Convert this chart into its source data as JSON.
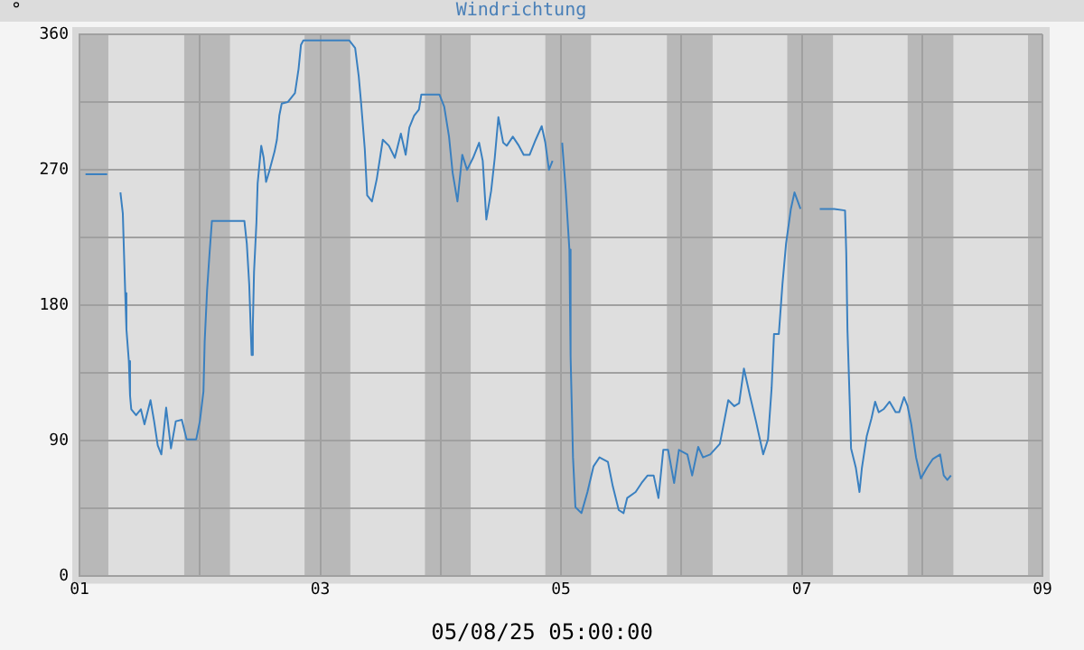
{
  "chart_data": {
    "type": "line",
    "title": "Windrichtung",
    "ylabel": "°",
    "annotations": [
      "05/08/25 05:00:00"
    ],
    "x": [
      1.05,
      1.23,
      1.28,
      1.34,
      1.36,
      1.37,
      1.38,
      1.39,
      1.41,
      1.42,
      1.43,
      1.47,
      1.51,
      1.54,
      1.59,
      1.62,
      1.65,
      1.68,
      1.72,
      1.76,
      1.8,
      1.85,
      1.89,
      1.97,
      2.0,
      2.03,
      2.04,
      2.06,
      2.08,
      2.1,
      2.37,
      2.39,
      2.41,
      2.43,
      2.44,
      2.45,
      2.47,
      2.48,
      2.51,
      2.53,
      2.55,
      2.58,
      2.62,
      2.64,
      2.66,
      2.68,
      2.73,
      2.79,
      2.82,
      2.84,
      2.86,
      3.24,
      3.29,
      3.32,
      3.34,
      3.37,
      3.39,
      3.43,
      3.47,
      3.52,
      3.57,
      3.62,
      3.67,
      3.71,
      3.74,
      3.78,
      3.82,
      3.84,
      3.99,
      4.03,
      4.07,
      4.1,
      4.14,
      4.18,
      4.22,
      4.27,
      4.32,
      4.35,
      4.38,
      4.42,
      4.45,
      4.48,
      4.52,
      4.55,
      4.6,
      4.65,
      4.69,
      4.74,
      4.79,
      4.84,
      4.87,
      4.9,
      4.93,
      4.97,
      5.01,
      5.04,
      5.07,
      5.08,
      5.1,
      5.12,
      5.17,
      5.22,
      5.27,
      5.32,
      5.39,
      5.43,
      5.48,
      5.52,
      5.55,
      5.62,
      5.67,
      5.72,
      5.77,
      5.81,
      5.85,
      5.89,
      5.94,
      5.98,
      6.05,
      6.09,
      6.14,
      6.18,
      6.24,
      6.32,
      6.39,
      6.44,
      6.48,
      6.52,
      6.57,
      6.62,
      6.68,
      6.72,
      6.75,
      6.77,
      6.81,
      6.84,
      6.87,
      6.91,
      6.94,
      6.99,
      7.07,
      7.15,
      7.27,
      7.36,
      7.37,
      7.38,
      7.4,
      7.41,
      7.45,
      7.48,
      7.5,
      7.54,
      7.58,
      7.61,
      7.64,
      7.68,
      7.73,
      7.78,
      7.81,
      7.85,
      7.88,
      7.91,
      7.95,
      7.99,
      8.04,
      8.09,
      8.15,
      8.18,
      8.21,
      8.24
    ],
    "series": [
      {
        "color": "#3a80c0",
        "values": [
          267,
          267,
          null,
          255,
          241,
          214,
          188,
          164,
          143,
          120,
          111,
          107,
          111,
          101,
          117,
          103,
          87,
          81,
          112,
          85,
          103,
          104,
          91,
          91,
          103,
          123,
          156,
          190,
          214,
          236,
          236,
          221,
          194,
          147,
          166,
          202,
          235,
          261,
          286,
          278,
          262,
          270,
          282,
          290,
          306,
          314,
          315,
          321,
          337,
          353,
          356,
          356,
          351,
          332,
          314,
          284,
          253,
          249,
          264,
          290,
          286,
          278,
          294,
          280,
          298,
          306,
          310,
          320,
          320,
          312,
          292,
          268,
          249,
          280,
          270,
          278,
          288,
          276,
          237,
          256,
          278,
          305,
          288,
          286,
          292,
          286,
          280,
          280,
          290,
          299,
          288,
          270,
          276,
          null,
          288,
          256,
          217,
          146,
          79,
          46,
          42,
          56,
          73,
          79,
          76,
          60,
          44,
          42,
          52,
          56,
          62,
          67,
          67,
          52,
          84,
          84,
          62,
          84,
          81,
          67,
          86,
          79,
          81,
          88,
          117,
          113,
          115,
          138,
          120,
          103,
          81,
          91,
          125,
          161,
          161,
          194,
          221,
          244,
          255,
          244,
          null,
          244,
          244,
          243,
          215,
          164,
          113,
          85,
          72,
          56,
          72,
          93,
          105,
          116,
          109,
          111,
          116,
          109,
          109,
          119,
          113,
          101,
          79,
          65,
          72,
          78,
          81,
          67,
          64,
          67
        ]
      }
    ],
    "xlim": [
      1,
      9
    ],
    "xticks": [
      {
        "value": 1,
        "label": "01"
      },
      {
        "value": 2,
        "label": null
      },
      {
        "value": 3,
        "label": "03"
      },
      {
        "value": 4,
        "label": null
      },
      {
        "value": 5,
        "label": "05"
      },
      {
        "value": 6,
        "label": null
      },
      {
        "value": 7,
        "label": "07"
      },
      {
        "value": 8,
        "label": null
      },
      {
        "value": 9,
        "label": "09"
      }
    ],
    "ylim": [
      0,
      360
    ],
    "yticks": [
      0,
      {
        "value": 45,
        "label": null
      },
      90,
      {
        "value": 135,
        "label": null
      },
      180,
      {
        "value": 225,
        "label": null
      },
      270,
      {
        "value": 315,
        "label": null
      },
      360
    ],
    "bands": [
      {
        "axis": "x",
        "from": 1,
        "to": 1.24,
        "color": "#b8b8b8"
      },
      {
        "axis": "x",
        "from": 1.87,
        "to": 2.25,
        "color": "#b8b8b8"
      },
      {
        "axis": "x",
        "from": 2.87,
        "to": 3.25,
        "color": "#b8b8b8"
      },
      {
        "axis": "x",
        "from": 3.87,
        "to": 4.25,
        "color": "#b8b8b8"
      },
      {
        "axis": "x",
        "from": 4.87,
        "to": 5.25,
        "color": "#b8b8b8"
      },
      {
        "axis": "x",
        "from": 5.88,
        "to": 6.26,
        "color": "#b8b8b8"
      },
      {
        "axis": "x",
        "from": 6.88,
        "to": 7.26,
        "color": "#b8b8b8"
      },
      {
        "axis": "x",
        "from": 7.88,
        "to": 8.26,
        "color": "#b8b8b8"
      },
      {
        "axis": "x",
        "from": 8.88,
        "to": 9,
        "color": "#b8b8b8"
      }
    ],
    "grid": true,
    "legend": false,
    "marker": "none",
    "line_style": "solid"
  }
}
